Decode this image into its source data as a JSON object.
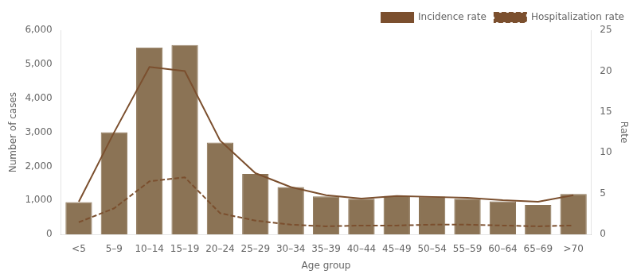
{
  "chart_data": {
    "type": "bar",
    "categories": [
      "<5",
      "5–9",
      "10–14",
      "15–19",
      "20–24",
      "25–29",
      "30–34",
      "35–39",
      "40–44",
      "45–49",
      "50–54",
      "55–59",
      "60–64",
      "65–69",
      ">70"
    ],
    "series": [
      {
        "type": "bar",
        "color": "#8B7355",
        "values": [
          950,
          3000,
          5490,
          5560,
          2700,
          1780,
          1390,
          1120,
          1050,
          1130,
          1110,
          1050,
          970,
          870,
          1190
        ]
      },
      {
        "name": "Incidence rate",
        "type": "line",
        "axis": "y2",
        "color": "#7B4F2E",
        "line_style": "solid",
        "values": [
          4.0,
          12.5,
          20.5,
          20.0,
          11.5,
          7.5,
          5.8,
          4.8,
          4.4,
          4.7,
          4.6,
          4.5,
          4.2,
          4.0,
          4.8
        ]
      },
      {
        "name": "Hospitalization rate",
        "type": "line",
        "axis": "y2",
        "color": "#7B4F2E",
        "line_style": "dashed",
        "values": [
          1.5,
          3.2,
          6.5,
          7.0,
          2.6,
          1.7,
          1.2,
          1.0,
          1.1,
          1.1,
          1.2,
          1.2,
          1.1,
          1.0,
          1.1
        ]
      }
    ],
    "xlabel": "Age group",
    "ylabel": "Number of cases",
    "y2label": "Rate",
    "ylim": [
      0,
      6000
    ],
    "yticks": [
      0,
      {
        "value": 1000,
        "label": "1,000"
      },
      {
        "value": 2000,
        "label": "2,000"
      },
      {
        "value": 3000,
        "label": "3,000"
      },
      {
        "value": 4000,
        "label": "4,000"
      },
      {
        "value": 5000,
        "label": "5,000"
      },
      {
        "value": 6000,
        "label": "6,000"
      }
    ],
    "y2lim": [
      0,
      25
    ],
    "y2ticks": [
      0,
      5,
      10,
      15,
      20,
      25
    ],
    "grid": false,
    "legend": "upper right"
  }
}
